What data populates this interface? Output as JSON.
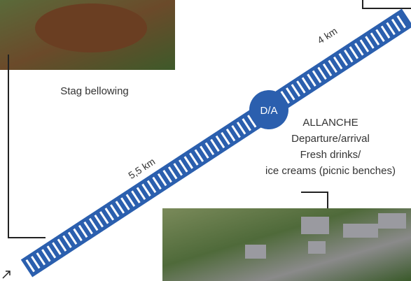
{
  "caption": "Stag bellowing",
  "marker": "D/A",
  "distances": [
    "4 km",
    "5,5 km"
  ],
  "info": {
    "town": "ALLANCHE",
    "lines": [
      "Departure/arrival",
      "Fresh drinks/",
      "ice creams (picnic benches)"
    ]
  }
}
